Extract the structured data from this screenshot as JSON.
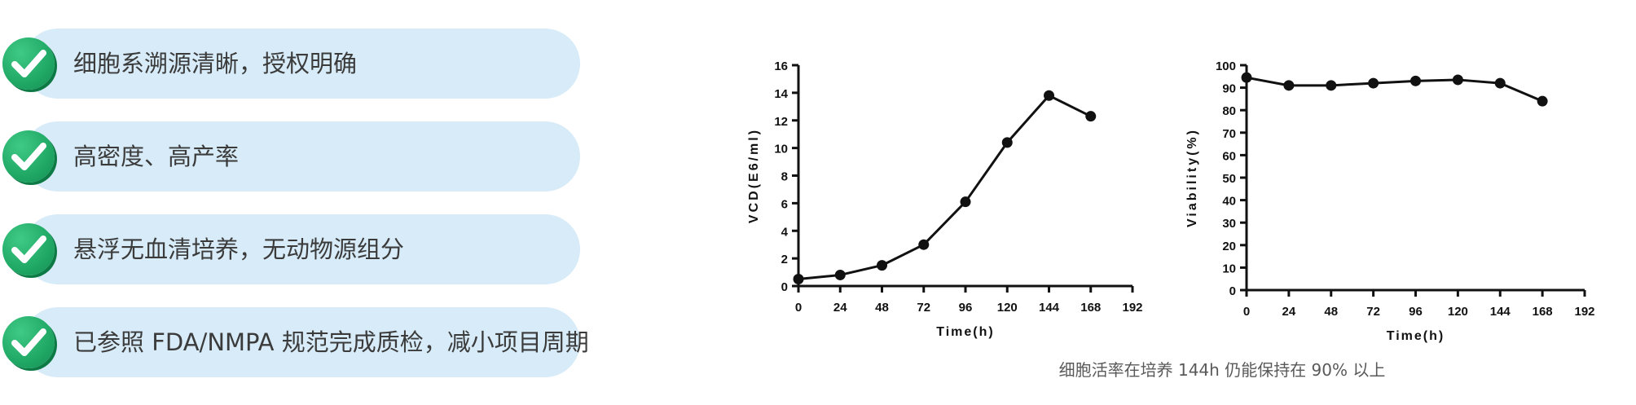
{
  "features": [
    {
      "text": "细胞系溯源清晰，授权明确"
    },
    {
      "text": "高密度、高产率"
    },
    {
      "text": "悬浮无血清培养，无动物源组分"
    },
    {
      "text": "已参照 FDA/NMPA 规范完成质检，减小项目周期"
    }
  ],
  "caption": "细胞活率在培养 144h 仍能保持在 90% 以上",
  "colors": {
    "pill": "#d7ebf8",
    "check": "#20a865",
    "text": "#3b3b3b",
    "line": "#111111"
  },
  "chart_data": [
    {
      "type": "line",
      "xlabel": "Time(h)",
      "ylabel": "VCD(E6/ml)",
      "xlim": [
        0,
        192
      ],
      "ylim": [
        0,
        16
      ],
      "x_ticks": [
        0,
        24,
        48,
        72,
        96,
        120,
        144,
        168,
        192
      ],
      "y_ticks": [
        0,
        2,
        4,
        6,
        8,
        10,
        12,
        14,
        16
      ],
      "grid": false,
      "series": [
        {
          "x": [
            0,
            24,
            48,
            72,
            96,
            120,
            144,
            168
          ],
          "y": [
            0.5,
            0.8,
            1.5,
            3.0,
            6.1,
            10.4,
            13.8,
            12.3
          ]
        }
      ]
    },
    {
      "type": "line",
      "xlabel": "Time(h)",
      "ylabel": "Viability(%)",
      "xlim": [
        0,
        192
      ],
      "ylim": [
        0,
        100
      ],
      "x_ticks": [
        0,
        24,
        48,
        72,
        96,
        120,
        144,
        168,
        192
      ],
      "y_ticks": [
        0,
        10,
        20,
        30,
        40,
        50,
        60,
        70,
        80,
        90,
        100
      ],
      "grid": false,
      "series": [
        {
          "x": [
            0,
            24,
            48,
            72,
            96,
            120,
            144,
            168
          ],
          "y": [
            94.5,
            91,
            91,
            92,
            93,
            93.5,
            92,
            84
          ]
        }
      ]
    }
  ]
}
